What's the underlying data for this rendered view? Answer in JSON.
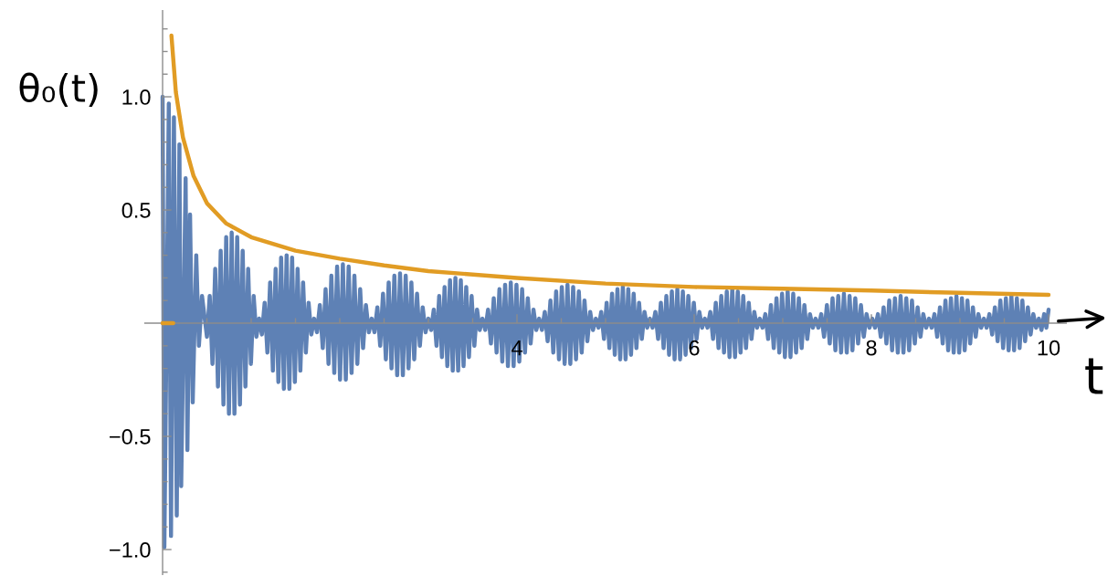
{
  "chart_data": {
    "type": "line",
    "xlabel": "t",
    "ylabel": "θ₀(t)",
    "line_style": "solid",
    "xlim": [
      -0.2,
      10.2
    ],
    "ylim": [
      -1.11,
      1.38
    ],
    "xticks": [
      {
        "value": 0.5,
        "label": null
      },
      {
        "value": 1,
        "label": null
      },
      {
        "value": 1.5,
        "label": null
      },
      {
        "value": 2,
        "label": null
      },
      {
        "value": 2.5,
        "label": null
      },
      {
        "value": 3,
        "label": null
      },
      {
        "value": 3.5,
        "label": null
      },
      4,
      {
        "value": 4.5,
        "label": null
      },
      {
        "value": 5,
        "label": null
      },
      {
        "value": 5.5,
        "label": null
      },
      6,
      {
        "value": 6.5,
        "label": null
      },
      {
        "value": 7,
        "label": null
      },
      {
        "value": 7.5,
        "label": null
      },
      8,
      {
        "value": 8.5,
        "label": null
      },
      {
        "value": 9,
        "label": null
      },
      {
        "value": 9.5,
        "label": null
      },
      10
    ],
    "yticks": [
      {
        "value": -1.1,
        "label": null
      },
      {
        "value": -1,
        "label": "−1.0"
      },
      {
        "value": -0.9,
        "label": null
      },
      {
        "value": -0.8,
        "label": null
      },
      {
        "value": -0.7,
        "label": null
      },
      {
        "value": -0.6,
        "label": null
      },
      {
        "value": -0.5,
        "label": "−0.5"
      },
      {
        "value": -0.4,
        "label": null
      },
      {
        "value": -0.3,
        "label": null
      },
      {
        "value": -0.2,
        "label": null
      },
      {
        "value": -0.1,
        "label": null
      },
      {
        "value": 0.1,
        "label": null
      },
      {
        "value": 0.2,
        "label": null
      },
      {
        "value": 0.3,
        "label": null
      },
      {
        "value": 0.4,
        "label": null
      },
      0.5,
      {
        "value": 0.6,
        "label": null
      },
      {
        "value": 0.7,
        "label": null
      },
      {
        "value": 0.8,
        "label": null
      },
      {
        "value": 0.9,
        "label": null
      },
      {
        "value": 1,
        "label": "1.0"
      },
      {
        "value": 1.1,
        "label": null
      },
      {
        "value": 1.2,
        "label": null
      },
      {
        "value": 1.3,
        "label": null
      }
    ],
    "series": [
      {
        "color": "#5e81b5",
        "x": [
          0,
          0.02,
          0.07,
          0.095,
          0.128,
          0.16,
          0.19,
          0.21,
          0.26,
          0.28,
          0.31,
          0.34,
          0.38,
          0.41,
          0.445,
          0.501,
          0.532,
          0.563,
          0.594,
          0.625,
          0.656,
          0.687,
          0.718,
          0.749,
          0.78,
          0.811,
          0.842,
          0.873,
          0.904,
          0.935,
          0.966,
          0.997,
          1.028,
          1.059,
          1.09,
          1.121,
          1.152,
          1.183,
          1.214,
          1.245,
          1.276,
          1.307,
          1.338,
          1.369,
          1.4,
          1.431,
          1.462,
          1.493,
          1.524,
          1.555,
          1.586,
          1.617,
          1.648,
          1.679,
          1.71,
          1.743,
          1.775,
          1.808,
          1.84,
          1.873,
          1.905,
          1.938,
          1.97,
          2.003,
          2.035,
          2.068,
          2.1,
          2.133,
          2.165,
          2.198,
          2.23,
          2.263,
          2.295,
          2.328,
          2.36,
          2.392,
          2.424,
          2.456,
          2.488,
          2.52,
          2.552,
          2.584,
          2.616,
          2.648,
          2.68,
          2.712,
          2.744,
          2.776,
          2.808,
          2.84,
          2.872,
          2.904,
          2.936,
          2.968,
          3.0,
          3.031,
          3.061,
          3.092,
          3.122,
          3.153,
          3.183,
          3.214,
          3.244,
          3.275,
          3.305,
          3.336,
          3.366,
          3.397,
          3.427,
          3.458,
          3.488,
          3.519,
          3.549,
          3.58,
          3.61,
          3.642,
          3.674,
          3.706,
          3.738,
          3.77,
          3.802,
          3.834,
          3.866,
          3.898,
          3.93,
          3.962,
          3.994,
          4.026,
          4.058,
          4.09,
          4.122,
          4.154,
          4.186,
          4.218,
          4.25,
          4.282,
          4.314,
          4.346,
          4.378,
          4.41,
          4.442,
          4.474,
          4.506,
          4.538,
          4.57,
          4.602,
          4.634,
          4.666,
          4.698,
          4.73,
          4.762,
          4.794,
          4.826,
          4.858,
          4.89,
          4.921,
          4.951,
          4.982,
          5.012,
          5.043,
          5.073,
          5.104,
          5.134,
          5.165,
          5.195,
          5.226,
          5.256,
          5.287,
          5.317,
          5.348,
          5.378,
          5.409,
          5.439,
          5.47,
          5.5,
          5.531,
          5.562,
          5.593,
          5.624,
          5.655,
          5.686,
          5.717,
          5.748,
          5.779,
          5.81,
          5.841,
          5.872,
          5.903,
          5.934,
          5.965,
          5.996,
          6.027,
          6.058,
          6.089,
          6.12,
          6.151,
          6.182,
          6.213,
          6.244,
          6.275,
          6.306,
          6.337,
          6.368,
          6.399,
          6.43,
          6.461,
          6.492,
          6.523,
          6.554,
          6.585,
          6.616,
          6.647,
          6.678,
          6.709,
          6.74,
          6.772,
          6.803,
          6.835,
          6.866,
          6.898,
          6.929,
          6.961,
          6.992,
          7.024,
          7.055,
          7.087,
          7.118,
          7.15,
          7.181,
          7.213,
          7.244,
          7.276,
          7.307,
          7.339,
          7.37,
          7.402,
          7.434,
          7.466,
          7.498,
          7.53,
          7.562,
          7.594,
          7.626,
          7.658,
          7.69,
          7.722,
          7.754,
          7.786,
          7.818,
          7.85,
          7.882,
          7.914,
          7.946,
          7.978,
          8.01,
          8.042,
          8.074,
          8.106,
          8.138,
          8.17,
          8.202,
          8.234,
          8.266,
          8.298,
          8.33,
          8.362,
          8.394,
          8.426,
          8.458,
          8.49,
          8.522,
          8.554,
          8.586,
          8.618,
          8.65,
          8.681,
          8.712,
          8.743,
          8.774,
          8.805,
          8.836,
          8.867,
          8.898,
          8.929,
          8.96,
          8.991,
          9.022,
          9.053,
          9.084,
          9.115,
          9.146,
          9.177,
          9.208,
          9.239,
          9.27,
          9.301,
          9.332,
          9.363,
          9.394,
          9.425,
          9.456,
          9.487,
          9.518,
          9.549,
          9.58,
          9.611,
          9.642,
          9.673,
          9.704,
          9.735,
          9.766,
          9.797,
          9.828,
          9.859,
          9.89,
          9.92,
          9.95,
          9.975,
          10.0
        ],
        "values": [
          1.0,
          -0.99,
          0.97,
          -0.94,
          0.91,
          -0.85,
          0.79,
          -0.72,
          0.64,
          -0.56,
          0.48,
          -0.35,
          0.3,
          -0.1,
          0.12,
          -0.06,
          0.12,
          -0.18,
          0.24,
          -0.28,
          0.32,
          -0.36,
          0.38,
          -0.4,
          0.4,
          -0.4,
          0.38,
          -0.36,
          0.32,
          -0.28,
          0.24,
          -0.18,
          0.12,
          -0.06,
          0.02,
          -0.05,
          0.09,
          -0.13,
          0.18,
          -0.21,
          0.24,
          -0.26,
          0.29,
          -0.29,
          0.3,
          -0.29,
          0.29,
          -0.26,
          0.24,
          -0.21,
          0.18,
          -0.13,
          0.09,
          -0.05,
          0.02,
          -0.04,
          0.08,
          -0.11,
          0.15,
          -0.18,
          0.21,
          -0.22,
          0.25,
          -0.25,
          0.26,
          -0.25,
          0.25,
          -0.22,
          0.21,
          -0.18,
          0.15,
          -0.11,
          0.08,
          -0.04,
          0.02,
          -0.04,
          0.07,
          -0.1,
          0.13,
          -0.16,
          0.18,
          -0.2,
          0.21,
          -0.23,
          0.22,
          -0.23,
          0.21,
          -0.2,
          0.18,
          -0.16,
          0.13,
          -0.1,
          0.07,
          -0.04,
          0.02,
          -0.03,
          0.06,
          -0.1,
          0.12,
          -0.15,
          0.16,
          -0.19,
          0.19,
          -0.21,
          0.2,
          -0.21,
          0.19,
          -0.19,
          0.16,
          -0.15,
          0.12,
          -0.1,
          0.06,
          -0.03,
          0.02,
          -0.03,
          0.06,
          -0.09,
          0.11,
          -0.13,
          0.15,
          -0.17,
          0.17,
          -0.19,
          0.18,
          -0.19,
          0.17,
          -0.17,
          0.15,
          -0.13,
          0.11,
          -0.09,
          0.06,
          -0.03,
          0.02,
          -0.03,
          0.05,
          -0.08,
          0.1,
          -0.13,
          0.14,
          -0.16,
          0.16,
          -0.18,
          0.17,
          -0.18,
          0.16,
          -0.16,
          0.14,
          -0.13,
          0.1,
          -0.08,
          0.05,
          -0.03,
          0.02,
          -0.02,
          0.05,
          -0.07,
          0.09,
          -0.11,
          0.13,
          -0.14,
          0.15,
          -0.16,
          0.16,
          -0.16,
          0.15,
          -0.14,
          0.13,
          -0.11,
          0.09,
          -0.07,
          0.05,
          -0.02,
          0.02,
          -0.02,
          0.05,
          -0.07,
          0.09,
          -0.11,
          0.12,
          -0.14,
          0.14,
          -0.16,
          0.15,
          -0.16,
          0.14,
          -0.14,
          0.12,
          -0.11,
          0.09,
          -0.07,
          0.05,
          -0.02,
          0.02,
          -0.02,
          0.05,
          -0.07,
          0.09,
          -0.11,
          0.12,
          -0.13,
          0.14,
          -0.15,
          0.15,
          -0.15,
          0.14,
          -0.13,
          0.12,
          -0.11,
          0.09,
          -0.07,
          0.05,
          -0.02,
          0.02,
          -0.02,
          0.04,
          -0.07,
          0.08,
          -0.11,
          0.11,
          -0.13,
          0.13,
          -0.15,
          0.14,
          -0.15,
          0.13,
          -0.13,
          0.11,
          -0.11,
          0.08,
          -0.07,
          0.04,
          -0.02,
          0.02,
          -0.02,
          0.04,
          -0.06,
          0.08,
          -0.09,
          0.11,
          -0.12,
          0.12,
          -0.13,
          0.13,
          -0.13,
          0.12,
          -0.12,
          0.11,
          -0.09,
          0.08,
          -0.06,
          0.04,
          -0.02,
          0.02,
          -0.02,
          0.04,
          -0.06,
          0.07,
          -0.09,
          0.1,
          -0.12,
          0.11,
          -0.13,
          0.12,
          -0.13,
          0.11,
          -0.12,
          0.1,
          -0.09,
          0.07,
          -0.06,
          0.04,
          -0.02,
          0.02,
          -0.02,
          0.04,
          -0.06,
          0.07,
          -0.09,
          0.1,
          -0.12,
          0.11,
          -0.13,
          0.12,
          -0.13,
          0.11,
          -0.12,
          0.1,
          -0.09,
          0.07,
          -0.06,
          0.04,
          -0.02,
          0.02,
          -0.02,
          0.04,
          -0.05,
          0.07,
          -0.08,
          0.1,
          -0.11,
          0.11,
          -0.12,
          0.12,
          -0.12,
          0.11,
          -0.11,
          0.1,
          -0.08,
          0.07,
          -0.05,
          0.04,
          -0.02,
          0.02,
          -0.03,
          0.04,
          -0.02,
          0.06
        ]
      },
      {
        "color": "#e19c24",
        "x": [
          0.1,
          0.15,
          0.23,
          0.35,
          0.5,
          0.72,
          1.0,
          1.5,
          2.0,
          2.5,
          3.0,
          4.0,
          5.0,
          6.0,
          7.0,
          8.0,
          9.0,
          10.0
        ],
        "values": [
          1.27,
          1.02,
          0.82,
          0.65,
          0.53,
          0.44,
          0.38,
          0.32,
          0.285,
          0.255,
          0.23,
          0.2,
          0.175,
          0.16,
          0.152,
          0.144,
          0.134,
          0.125
        ]
      },
      {
        "color": "#e19c24",
        "x": [
          0,
          0.12
        ],
        "values": [
          0,
          0
        ]
      }
    ]
  }
}
